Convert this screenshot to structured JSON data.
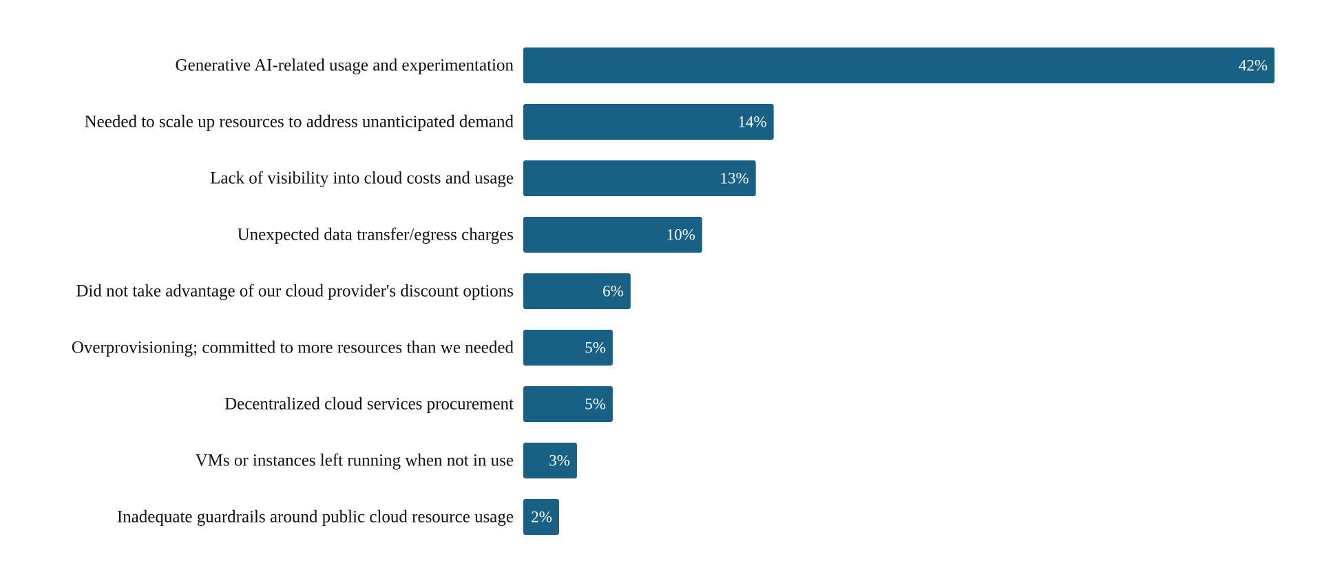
{
  "colors": {
    "bar": "#186185",
    "label": "#111111",
    "value_label": "#ffffff",
    "background": "#ffffff"
  },
  "chart_data": {
    "type": "bar",
    "orientation": "horizontal",
    "title": "",
    "xlabel": "",
    "ylabel": "",
    "grid": false,
    "legend": "none",
    "xlim": [
      0,
      42
    ],
    "categories": [
      "Generative AI-related usage and experimentation",
      "Needed to scale up resources to address unanticipated demand",
      "Lack of visibility into cloud costs and usage",
      "Unexpected data transfer/egress charges",
      "Did not take advantage of our cloud provider's discount options",
      "Overprovisioning; committed to more resources than we needed",
      "Decentralized cloud services procurement",
      "VMs or instances left running when not in use",
      "Inadequate guardrails around public cloud resource usage"
    ],
    "values": [
      42,
      14,
      13,
      10,
      6,
      5,
      5,
      3,
      2
    ],
    "value_labels": [
      "42%",
      "14%",
      "13%",
      "10%",
      "6%",
      "5%",
      "5%",
      "3%",
      "2%"
    ]
  }
}
